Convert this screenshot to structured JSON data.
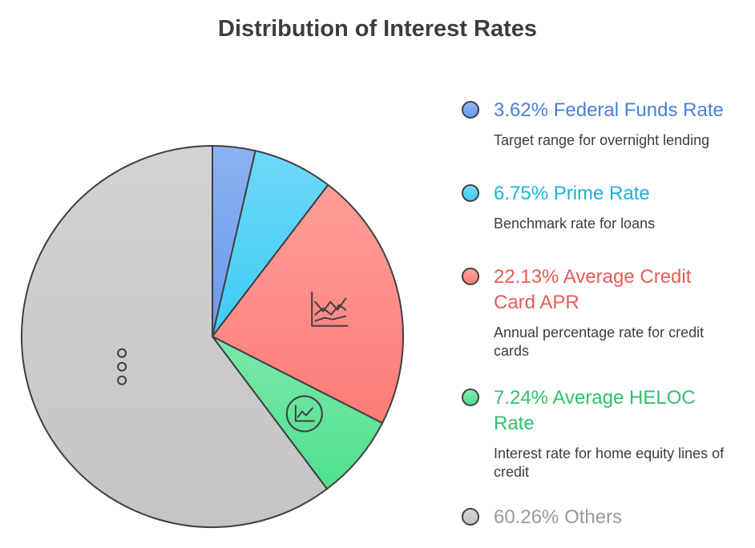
{
  "title": "Distribution of Interest Rates",
  "chart_data": {
    "type": "pie",
    "title": "Distribution of Interest Rates",
    "slices": [
      {
        "value": 3.62,
        "label": "3.62% Federal Funds Rate",
        "description": "Target range for overnight lending",
        "color": "#6699ee",
        "text_color": "#4a7fd6",
        "icon": ""
      },
      {
        "value": 6.75,
        "label": "6.75% Prime Rate",
        "description": "Benchmark rate for loans",
        "color": "#3ecbf6",
        "text_color": "#1fb0da",
        "icon": ""
      },
      {
        "value": 22.13,
        "label": "22.13% Average Credit Card APR",
        "description": "Annual percentage rate for credit cards",
        "color": "#fd7c77",
        "text_color": "#e85c55",
        "icon": "line-chart-icon"
      },
      {
        "value": 7.24,
        "label": "7.24% Average HELOC Rate",
        "description": "Interest rate for home equity lines of credit",
        "color": "#4fe08f",
        "text_color": "#32bf70",
        "icon": "trend-circle-icon"
      },
      {
        "value": 60.26,
        "label": "60.26% Others",
        "description": "",
        "color": "#c4c4c4",
        "text_color": "#9a9a9a",
        "icon": "more-dots-icon"
      }
    ],
    "legend_position": "right"
  }
}
